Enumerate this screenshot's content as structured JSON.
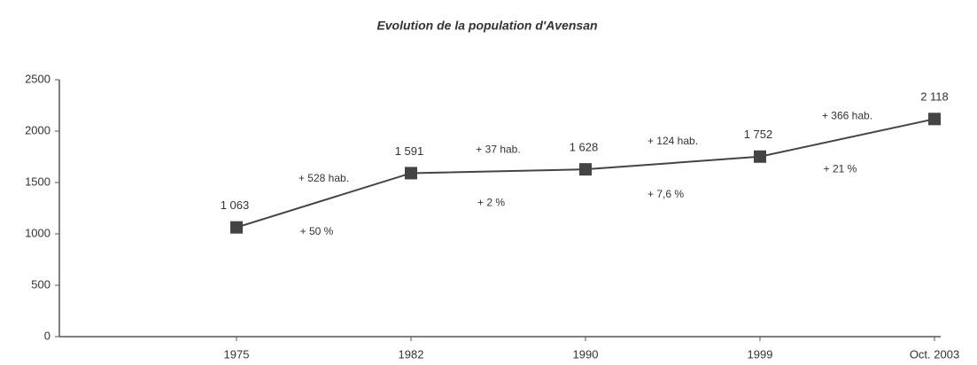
{
  "chart_data": {
    "type": "line",
    "title": "Evolution de la population d'Avensan",
    "categories": [
      "1975",
      "1982",
      "1990",
      "1999",
      "Oct. 2003"
    ],
    "series": [
      {
        "color": "#444444",
        "values": [
          1063,
          1591,
          1628,
          1752,
          2118
        ],
        "value_labels": [
          "1 063",
          "1 591",
          "1 628",
          "1 752",
          "2 118"
        ]
      }
    ],
    "ylim": [
      0,
      2500
    ],
    "yticks": [
      0,
      500,
      1000,
      1500,
      2000,
      2500
    ],
    "grid": false,
    "annotations": [
      {
        "gain": "+ 528 hab.",
        "rate": "+ 50 %"
      },
      {
        "gain": "+ 37 hab.",
        "rate": "+ 2 %"
      },
      {
        "gain": "+ 124 hab.",
        "rate": "+ 7,6 %"
      },
      {
        "gain": "+ 366 hab.",
        "rate": "+ 21 %"
      }
    ]
  }
}
